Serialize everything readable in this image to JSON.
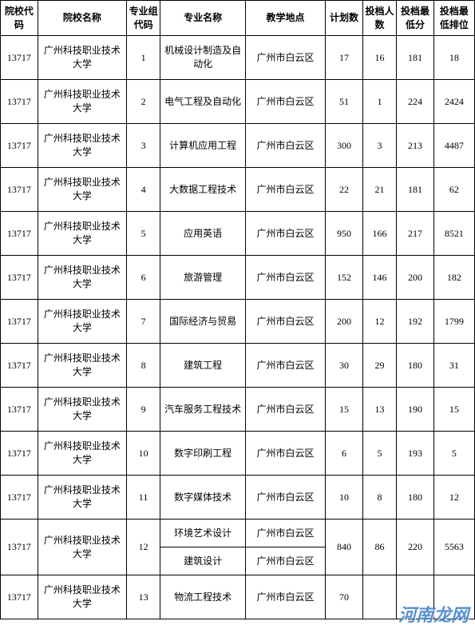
{
  "table": {
    "columns": [
      "院校代码",
      "院校名称",
      "专业组代码",
      "专业名称",
      "教学地点",
      "计划数",
      "投档人数",
      "投档最低分",
      "投档最低排位"
    ],
    "column_widths": [
      "42px",
      "100px",
      "38px",
      "96px",
      "90px",
      "42px",
      "38px",
      "42px",
      "46px"
    ],
    "border_color": "#000000",
    "background_color": "#ffffff",
    "text_color": "#000000",
    "header_fontsize": 13,
    "cell_fontsize": 12,
    "font_family": "SimSun",
    "rows": [
      {
        "code": "13717",
        "school": "广州科技职业技术大学",
        "group": "1",
        "major": "机械设计制造及自动化",
        "location": "广州市白云区",
        "plan": "17",
        "admit": "16",
        "score": "181",
        "rank": "18"
      },
      {
        "code": "13717",
        "school": "广州科技职业技术大学",
        "group": "2",
        "major": "电气工程及自动化",
        "location": "广州市白云区",
        "plan": "51",
        "admit": "1",
        "score": "224",
        "rank": "2424"
      },
      {
        "code": "13717",
        "school": "广州科技职业技术大学",
        "group": "3",
        "major": "计算机应用工程",
        "location": "广州市白云区",
        "plan": "300",
        "admit": "3",
        "score": "213",
        "rank": "4487"
      },
      {
        "code": "13717",
        "school": "广州科技职业技术大学",
        "group": "4",
        "major": "大数据工程技术",
        "location": "广州市白云区",
        "plan": "22",
        "admit": "21",
        "score": "181",
        "rank": "62"
      },
      {
        "code": "13717",
        "school": "广州科技职业技术大学",
        "group": "5",
        "major": "应用英语",
        "location": "广州市白云区",
        "plan": "950",
        "admit": "166",
        "score": "217",
        "rank": "8521"
      },
      {
        "code": "13717",
        "school": "广州科技职业技术大学",
        "group": "6",
        "major": "旅游管理",
        "location": "广州市白云区",
        "plan": "152",
        "admit": "146",
        "score": "200",
        "rank": "182"
      },
      {
        "code": "13717",
        "school": "广州科技职业技术大学",
        "group": "7",
        "major": "国际经济与贸易",
        "location": "广州市白云区",
        "plan": "200",
        "admit": "12",
        "score": "192",
        "rank": "1799"
      },
      {
        "code": "13717",
        "school": "广州科技职业技术大学",
        "group": "8",
        "major": "建筑工程",
        "location": "广州市白云区",
        "plan": "30",
        "admit": "29",
        "score": "180",
        "rank": "31"
      },
      {
        "code": "13717",
        "school": "广州科技职业技术大学",
        "group": "9",
        "major": "汽车服务工程技术",
        "location": "广州市白云区",
        "plan": "15",
        "admit": "13",
        "score": "190",
        "rank": "15"
      },
      {
        "code": "13717",
        "school": "广州科技职业技术大学",
        "group": "10",
        "major": "数字印刷工程",
        "location": "广州市白云区",
        "plan": "6",
        "admit": "5",
        "score": "193",
        "rank": "5"
      },
      {
        "code": "13717",
        "school": "广州科技职业技术大学",
        "group": "11",
        "major": "数字媒体技术",
        "location": "广州市白云区",
        "plan": "10",
        "admit": "8",
        "score": "180",
        "rank": "12"
      }
    ],
    "merged_row": {
      "code": "13717",
      "school": "广州科技职业技术大学",
      "group": "12",
      "majors": [
        "环境艺术设计",
        "建筑设计"
      ],
      "locations": [
        "广州市白云区",
        "广州市白云区"
      ],
      "plan": "840",
      "admit": "86",
      "score": "220",
      "rank": "5563"
    },
    "last_row": {
      "code": "13717",
      "school": "广州科技职业技术大学",
      "group": "13",
      "major": "物流工程技术",
      "location": "广州市白云区",
      "plan": "70"
    }
  },
  "watermark": {
    "text": "河南龙网",
    "color": "#3a7fc8",
    "secondary": ""
  }
}
